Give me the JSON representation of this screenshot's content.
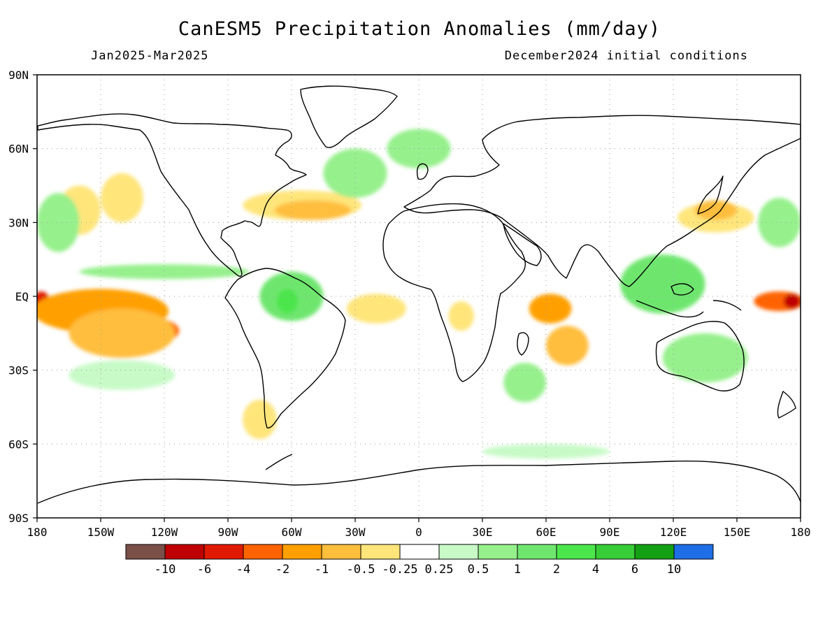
{
  "header": {
    "title": "CanESM5 Precipitation Anomalies (mm/day)",
    "period": "Jan2025-Mar2025",
    "init": "December2024 initial conditions"
  },
  "map": {
    "projection": "cylindrical-equidistant",
    "lon_range": [
      -180,
      180
    ],
    "lat_range": [
      -90,
      90
    ],
    "grid": "dotted",
    "lat_labels": [
      "90N",
      "60N",
      "30N",
      "EQ",
      "30S",
      "60S",
      "90S"
    ],
    "lon_labels": [
      "180",
      "150W",
      "120W",
      "90W",
      "60W",
      "30W",
      "0",
      "30E",
      "60E",
      "90E",
      "120E",
      "150E",
      "180"
    ]
  },
  "colorbar": {
    "colors": [
      "#7a5048",
      "#c00000",
      "#e01a00",
      "#ff6400",
      "#ffa000",
      "#ffbe3c",
      "#ffe57a",
      "#ffffff",
      "#c8fac8",
      "#96f08c",
      "#6ee66e",
      "#4be64b",
      "#36cd36",
      "#14a014",
      "#1e6ee6"
    ],
    "labels": [
      "-10",
      "-6",
      "-4",
      "-2",
      "-1",
      "-0.5",
      "-0.25",
      "0.25",
      "0.5",
      "1",
      "2",
      "4",
      "6",
      "10"
    ]
  },
  "anomalies": [
    {
      "category": "-4",
      "color": "#e01a00",
      "lon": -178,
      "lat": -2,
      "rlon": 4,
      "rlat": 4
    },
    {
      "category": "-2",
      "color": "#ff6400",
      "lon": -155,
      "lat": -4,
      "rlon": 22,
      "rlat": 5
    },
    {
      "category": "-2",
      "color": "#ff6400",
      "lon": -125,
      "lat": -14,
      "rlon": 12,
      "rlat": 5
    },
    {
      "category": "-1",
      "color": "#ffa000",
      "lon": -150,
      "lat": -6,
      "rlon": 32,
      "rlat": 9
    },
    {
      "category": "-0.5",
      "color": "#ffbe3c",
      "lon": -140,
      "lat": -15,
      "rlon": 25,
      "rlat": 10
    },
    {
      "category": "-0.25",
      "color": "#ffe57a",
      "lon": -160,
      "lat": 35,
      "rlon": 10,
      "rlat": 10
    },
    {
      "category": "-0.25",
      "color": "#ffe57a",
      "lon": -140,
      "lat": 40,
      "rlon": 10,
      "rlat": 10
    },
    {
      "category": "-0.25",
      "color": "#ffe57a",
      "lon": -55,
      "lat": 37,
      "rlon": 28,
      "rlat": 6
    },
    {
      "category": "-0.5",
      "color": "#ffbe3c",
      "lon": -50,
      "lat": 35,
      "rlon": 18,
      "rlat": 4
    },
    {
      "category": "-0.25",
      "color": "#ffe57a",
      "lon": -20,
      "lat": -5,
      "rlon": 14,
      "rlat": 6
    },
    {
      "category": "-0.25",
      "color": "#ffe57a",
      "lon": -75,
      "lat": -50,
      "rlon": 8,
      "rlat": 8
    },
    {
      "category": "-0.25",
      "color": "#ffe57a",
      "lon": 20,
      "lat": -8,
      "rlon": 6,
      "rlat": 6
    },
    {
      "category": "-1",
      "color": "#ffa000",
      "lon": 62,
      "lat": -5,
      "rlon": 10,
      "rlat": 6
    },
    {
      "category": "-0.5",
      "color": "#ffbe3c",
      "lon": 70,
      "lat": -20,
      "rlon": 10,
      "rlat": 8
    },
    {
      "category": "-0.25",
      "color": "#ffe57a",
      "lon": 140,
      "lat": 32,
      "rlon": 18,
      "rlat": 6
    },
    {
      "category": "-0.5",
      "color": "#ffbe3c",
      "lon": 140,
      "lat": 35,
      "rlon": 10,
      "rlat": 4
    },
    {
      "category": "-2",
      "color": "#ff6400",
      "lon": 170,
      "lat": -2,
      "rlon": 12,
      "rlat": 4
    },
    {
      "category": "-6",
      "color": "#c00000",
      "lon": 176,
      "lat": -2,
      "rlon": 4,
      "rlat": 3
    },
    {
      "category": "0.5",
      "color": "#96f08c",
      "lon": -170,
      "lat": 30,
      "rlon": 10,
      "rlat": 12
    },
    {
      "category": "0.5",
      "color": "#96f08c",
      "lon": -120,
      "lat": 10,
      "rlon": 40,
      "rlat": 3
    },
    {
      "category": "1",
      "color": "#6ee66e",
      "lon": -60,
      "lat": 0,
      "rlon": 15,
      "rlat": 10
    },
    {
      "category": "2",
      "color": "#4be64b",
      "lon": -62,
      "lat": -2,
      "rlon": 5,
      "rlat": 5
    },
    {
      "category": "0.5",
      "color": "#96f08c",
      "lon": -30,
      "lat": 50,
      "rlon": 15,
      "rlat": 10
    },
    {
      "category": "0.5",
      "color": "#96f08c",
      "lon": 0,
      "lat": 60,
      "rlon": 15,
      "rlat": 8
    },
    {
      "category": "1",
      "color": "#6ee66e",
      "lon": 115,
      "lat": 5,
      "rlon": 20,
      "rlat": 12
    },
    {
      "category": "0.5",
      "color": "#96f08c",
      "lon": 135,
      "lat": -25,
      "rlon": 20,
      "rlat": 10
    },
    {
      "category": "0.5",
      "color": "#96f08c",
      "lon": 50,
      "lat": -35,
      "rlon": 10,
      "rlat": 8
    },
    {
      "category": "0.5",
      "color": "#96f08c",
      "lon": 170,
      "lat": 30,
      "rlon": 10,
      "rlat": 10
    },
    {
      "category": "0.25",
      "color": "#c8fac8",
      "lon": 60,
      "lat": -63,
      "rlon": 30,
      "rlat": 3
    },
    {
      "category": "0.25",
      "color": "#c8fac8",
      "lon": -140,
      "lat": -32,
      "rlon": 25,
      "rlat": 6
    }
  ]
}
